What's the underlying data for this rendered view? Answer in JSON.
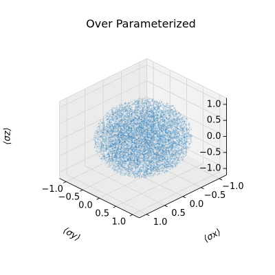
{
  "chart_data": {
    "type": "scatter",
    "projection": "3d",
    "title": "Over Parameterized",
    "xlabel": "⟨σx⟩",
    "ylabel": "⟨σy⟩",
    "zlabel": "⟨σz⟩",
    "xlim": [
      -1.2,
      1.2
    ],
    "ylim": [
      -1.2,
      1.2
    ],
    "zlim": [
      -1.2,
      1.2
    ],
    "xticks": [
      -1.0,
      -0.5,
      0.0,
      0.5,
      1.0
    ],
    "yticks": [
      -1.0,
      -0.5,
      0.0,
      0.5,
      1.0
    ],
    "zticks": [
      -1.0,
      -0.5,
      0.0,
      0.5,
      1.0
    ],
    "xtick_labels": [
      "−1.0",
      "−0.5",
      "0.0",
      "0.5",
      "1.0"
    ],
    "ytick_labels": [
      "−1.0",
      "−0.5",
      "0.0",
      "0.5",
      "1.0"
    ],
    "ztick_labels": [
      "−1.0",
      "−0.5",
      "0.0",
      "0.5",
      "1.0"
    ],
    "grid": true,
    "view": {
      "elev_deg": 30,
      "azim_deg": 45
    },
    "series": [
      {
        "marker_color": "#1f77b4",
        "distribution": "points filling the unit ball (Bloch sphere interior and surface)",
        "radius": 1.0,
        "point_count": 20000
      }
    ]
  },
  "colors": {
    "background": "#ffffff",
    "pane": "#f2f2f2",
    "pane_alt": "#ebebeb",
    "grid": "#d3d3d3",
    "axis_line": "#000000",
    "points": "#1f77b4"
  }
}
